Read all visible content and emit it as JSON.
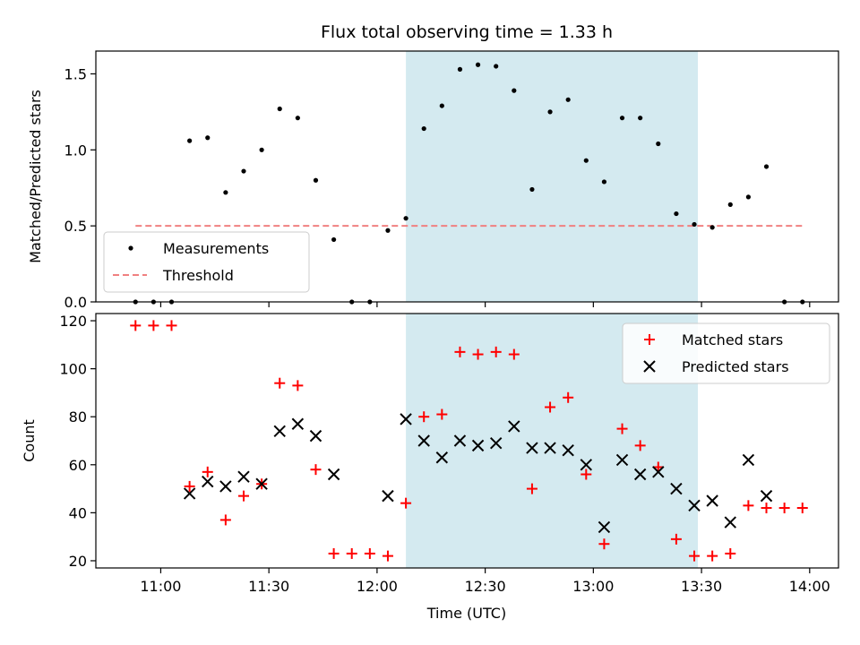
{
  "chart_data": [
    {
      "type": "scatter",
      "title": "Flux total observing time = 1.33 h",
      "ylabel": "Matched/Predicted stars",
      "ylim": [
        0,
        1.65
      ],
      "yticks": [
        0.0,
        0.5,
        1.0,
        1.5
      ],
      "ytick_labels": [
        "0.0",
        "0.5",
        "1.0",
        "1.5"
      ],
      "grid": false,
      "legend_position": "lower-left",
      "highlight_span": {
        "start": "12:08",
        "end": "13:29",
        "color": "#d4eaf0"
      },
      "series": [
        {
          "name": "Measurements",
          "marker": "dot",
          "color": "#000000",
          "x": [
            "10:53",
            "10:58",
            "11:03",
            "11:08",
            "11:13",
            "11:18",
            "11:23",
            "11:28",
            "11:33",
            "11:38",
            "11:43",
            "11:48",
            "11:53",
            "11:58",
            "12:03",
            "12:08",
            "12:13",
            "12:18",
            "12:23",
            "12:28",
            "12:33",
            "12:38",
            "12:43",
            "12:48",
            "12:53",
            "12:58",
            "13:03",
            "13:08",
            "13:13",
            "13:18",
            "13:23",
            "13:28",
            "13:33",
            "13:38",
            "13:43",
            "13:48",
            "13:53",
            "13:58"
          ],
          "y": [
            0.0,
            0.0,
            0.0,
            1.06,
            1.08,
            0.72,
            0.86,
            1.0,
            1.27,
            1.21,
            0.8,
            0.41,
            0.0,
            0.0,
            0.47,
            0.55,
            1.14,
            1.29,
            1.53,
            1.56,
            1.55,
            1.39,
            0.74,
            1.25,
            1.33,
            0.93,
            0.79,
            1.21,
            1.21,
            1.04,
            0.58,
            0.51,
            0.49,
            0.64,
            0.69,
            0.89,
            0.0,
            0.0
          ]
        },
        {
          "name": "Threshold",
          "style": "dashed",
          "color": "#f08080",
          "x": [
            "10:53",
            "13:58"
          ],
          "y": [
            0.5,
            0.5
          ]
        }
      ]
    },
    {
      "type": "scatter",
      "xlabel": "Time (UTC)",
      "ylabel": "Count",
      "ylim": [
        17,
        123
      ],
      "yticks": [
        20,
        40,
        60,
        80,
        100,
        120
      ],
      "ytick_labels": [
        "20",
        "40",
        "60",
        "80",
        "100",
        "120"
      ],
      "xlim": [
        "10:42",
        "14:08"
      ],
      "xticks": [
        "11:00",
        "11:30",
        "12:00",
        "12:30",
        "13:00",
        "13:30",
        "14:00"
      ],
      "xtick_labels": [
        "11:00",
        "11:30",
        "12:00",
        "12:30",
        "13:00",
        "13:30",
        "14:00"
      ],
      "grid": false,
      "legend_position": "top-right",
      "highlight_span": {
        "start": "12:08",
        "end": "13:29",
        "color": "#d4eaf0"
      },
      "series": [
        {
          "name": "Matched stars",
          "marker": "plus",
          "color": "#ff0000",
          "x": [
            "10:53",
            "10:58",
            "11:03",
            "11:08",
            "11:13",
            "11:18",
            "11:23",
            "11:28",
            "11:33",
            "11:38",
            "11:43",
            "11:48",
            "11:53",
            "11:58",
            "12:03",
            "12:08",
            "12:13",
            "12:18",
            "12:23",
            "12:28",
            "12:33",
            "12:38",
            "12:43",
            "12:48",
            "12:53",
            "12:58",
            "13:03",
            "13:08",
            "13:13",
            "13:18",
            "13:23",
            "13:28",
            "13:33",
            "13:38",
            "13:43",
            "13:48",
            "13:53",
            "13:58"
          ],
          "y": [
            118,
            118,
            118,
            51,
            57,
            37,
            47,
            52,
            94,
            93,
            58,
            23,
            23,
            23,
            22,
            44,
            80,
            81,
            107,
            106,
            107,
            106,
            50,
            84,
            88,
            56,
            27,
            75,
            68,
            59,
            29,
            22,
            22,
            23,
            43,
            42,
            42,
            42
          ]
        },
        {
          "name": "Predicted stars",
          "marker": "x",
          "color": "#000000",
          "x": [
            "11:08",
            "11:13",
            "11:18",
            "11:23",
            "11:28",
            "11:33",
            "11:38",
            "11:43",
            "11:48",
            "12:03",
            "12:08",
            "12:13",
            "12:18",
            "12:23",
            "12:28",
            "12:33",
            "12:38",
            "12:43",
            "12:48",
            "12:53",
            "12:58",
            "13:03",
            "13:08",
            "13:13",
            "13:18",
            "13:23",
            "13:28",
            "13:33",
            "13:38",
            "13:43",
            "13:48"
          ],
          "y": [
            48,
            53,
            51,
            55,
            52,
            74,
            77,
            72,
            56,
            47,
            79,
            70,
            63,
            70,
            68,
            69,
            76,
            67,
            67,
            66,
            60,
            34,
            62,
            56,
            57,
            50,
            43,
            45,
            36,
            62,
            47
          ]
        }
      ]
    }
  ]
}
